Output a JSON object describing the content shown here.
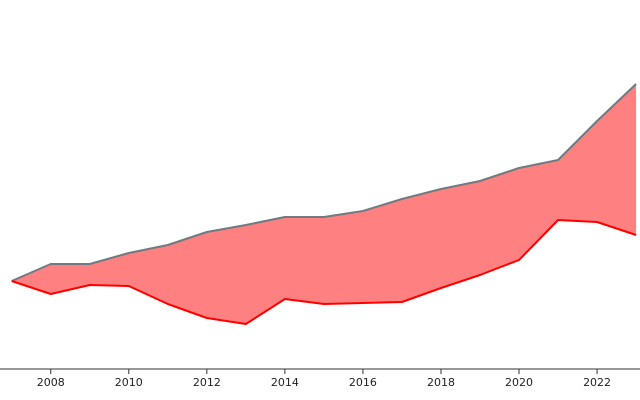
{
  "chart_data": {
    "type": "fill_between",
    "x": [
      2007,
      2008,
      2009,
      2010,
      2011,
      2012,
      2013,
      2014,
      2015,
      2016,
      2017,
      2018,
      2019,
      2020,
      2021,
      2022,
      2023
    ],
    "series": [
      {
        "color": "#6f7b80",
        "values": [
          88,
          105,
          105,
          116,
          124,
          137,
          144,
          152,
          152,
          158,
          170,
          180,
          188,
          201,
          209,
          248,
          285
        ]
      },
      {
        "color": "#ff0000",
        "values": [
          88,
          75,
          84,
          83,
          65,
          51,
          45,
          70,
          65,
          66,
          67,
          81,
          94,
          109,
          149,
          147,
          134
        ]
      }
    ],
    "fill_color": "#ff8080",
    "xlim": [
      2006.7,
      2023.1
    ],
    "xticks": [
      2008,
      2010,
      2012,
      2014,
      2016,
      2018,
      2020,
      2022
    ],
    "ylim": [
      0,
      369
    ]
  }
}
